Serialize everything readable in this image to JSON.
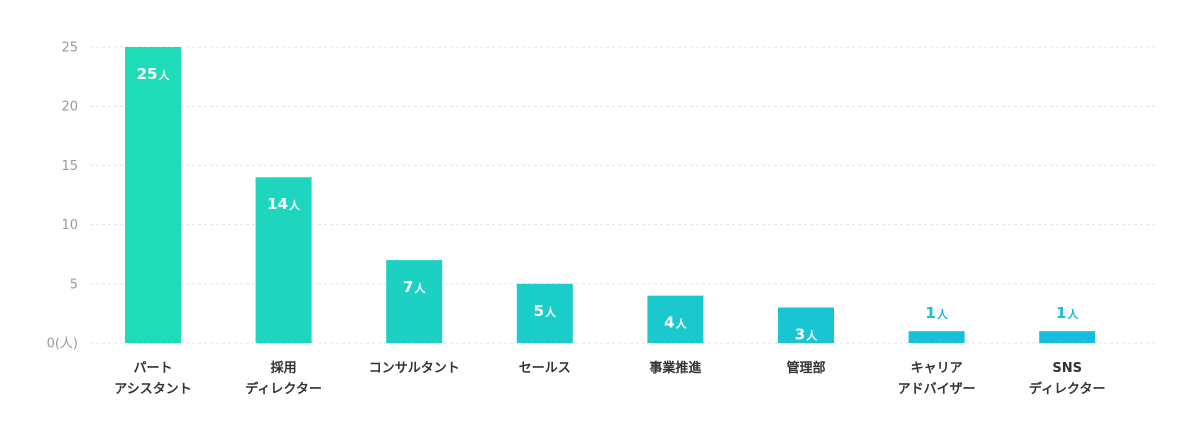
{
  "chart_data": {
    "type": "bar",
    "categories": [
      [
        "パート",
        "アシスタント"
      ],
      [
        "採用",
        "ディレクター"
      ],
      [
        "コンサルタント"
      ],
      [
        "セールス"
      ],
      [
        "事業推進"
      ],
      [
        "管理部"
      ],
      [
        "キャリア",
        "アドバイザー"
      ],
      [
        "SNS",
        "ディレクター"
      ]
    ],
    "values": [
      25,
      14,
      7,
      5,
      4,
      3,
      1,
      1
    ],
    "value_unit": "人",
    "ylim": [
      0,
      25
    ],
    "yticks": [
      0,
      5,
      10,
      15,
      20,
      25
    ],
    "ytick_labels": [
      "0(人)",
      "5",
      "10",
      "15",
      "20",
      "25"
    ],
    "grid": true,
    "bar_colors": [
      "#1edcb8",
      "#1dd6bd",
      "#1cd1c2",
      "#1bcdc8",
      "#1ac9ce",
      "#19c5d3",
      "#18c1d8",
      "#17bddc"
    ],
    "title": "",
    "xlabel": "",
    "ylabel": ""
  }
}
